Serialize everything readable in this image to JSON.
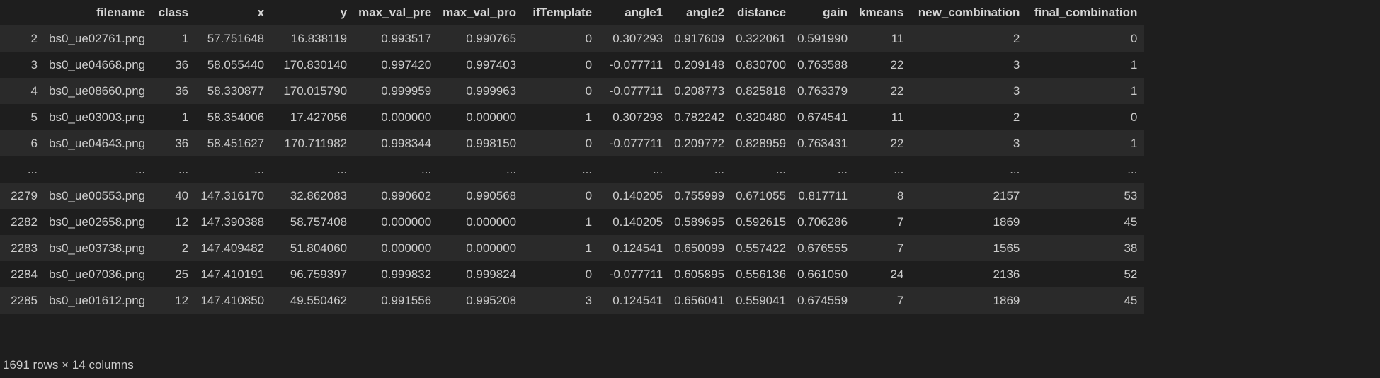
{
  "table": {
    "columns": [
      "",
      "filename",
      "class",
      "x",
      "y",
      "max_val_pre",
      "max_val_pro",
      "ifTemplate",
      "angle1",
      "angle2",
      "distance",
      "gain",
      "kmeans",
      "new_combination",
      "final_combination"
    ],
    "rows": [
      [
        "2",
        "bs0_ue02761.png",
        "1",
        "57.751648",
        "16.838119",
        "0.993517",
        "0.990765",
        "0",
        "0.307293",
        "0.917609",
        "0.322061",
        "0.591990",
        "11",
        "2",
        "0"
      ],
      [
        "3",
        "bs0_ue04668.png",
        "36",
        "58.055440",
        "170.830140",
        "0.997420",
        "0.997403",
        "0",
        "-0.077711",
        "0.209148",
        "0.830700",
        "0.763588",
        "22",
        "3",
        "1"
      ],
      [
        "4",
        "bs0_ue08660.png",
        "36",
        "58.330877",
        "170.015790",
        "0.999959",
        "0.999963",
        "0",
        "-0.077711",
        "0.208773",
        "0.825818",
        "0.763379",
        "22",
        "3",
        "1"
      ],
      [
        "5",
        "bs0_ue03003.png",
        "1",
        "58.354006",
        "17.427056",
        "0.000000",
        "0.000000",
        "1",
        "0.307293",
        "0.782242",
        "0.320480",
        "0.674541",
        "11",
        "2",
        "0"
      ],
      [
        "6",
        "bs0_ue04643.png",
        "36",
        "58.451627",
        "170.711982",
        "0.998344",
        "0.998150",
        "0",
        "-0.077711",
        "0.209772",
        "0.828959",
        "0.763431",
        "22",
        "3",
        "1"
      ],
      [
        "...",
        "...",
        "...",
        "...",
        "...",
        "...",
        "...",
        "...",
        "...",
        "...",
        "...",
        "...",
        "...",
        "...",
        "..."
      ],
      [
        "2279",
        "bs0_ue00553.png",
        "40",
        "147.316170",
        "32.862083",
        "0.990602",
        "0.990568",
        "0",
        "0.140205",
        "0.755999",
        "0.671055",
        "0.817711",
        "8",
        "2157",
        "53"
      ],
      [
        "2282",
        "bs0_ue02658.png",
        "12",
        "147.390388",
        "58.757408",
        "0.000000",
        "0.000000",
        "1",
        "0.140205",
        "0.589695",
        "0.592615",
        "0.706286",
        "7",
        "1869",
        "45"
      ],
      [
        "2283",
        "bs0_ue03738.png",
        "2",
        "147.409482",
        "51.804060",
        "0.000000",
        "0.000000",
        "1",
        "0.124541",
        "0.650099",
        "0.557422",
        "0.676555",
        "7",
        "1565",
        "38"
      ],
      [
        "2284",
        "bs0_ue07036.png",
        "25",
        "147.410191",
        "96.759397",
        "0.999832",
        "0.999824",
        "0",
        "-0.077711",
        "0.605895",
        "0.556136",
        "0.661050",
        "24",
        "2136",
        "52"
      ],
      [
        "2285",
        "bs0_ue01612.png",
        "12",
        "147.410850",
        "49.550462",
        "0.991556",
        "0.995208",
        "3",
        "0.124541",
        "0.656041",
        "0.559041",
        "0.674559",
        "7",
        "1869",
        "45"
      ]
    ]
  },
  "footer": {
    "summary": "1691 rows × 14 columns"
  },
  "colors": {
    "background": "#1e1e1e",
    "row_stripe": "#2a2a2a",
    "text": "#cccccc"
  }
}
